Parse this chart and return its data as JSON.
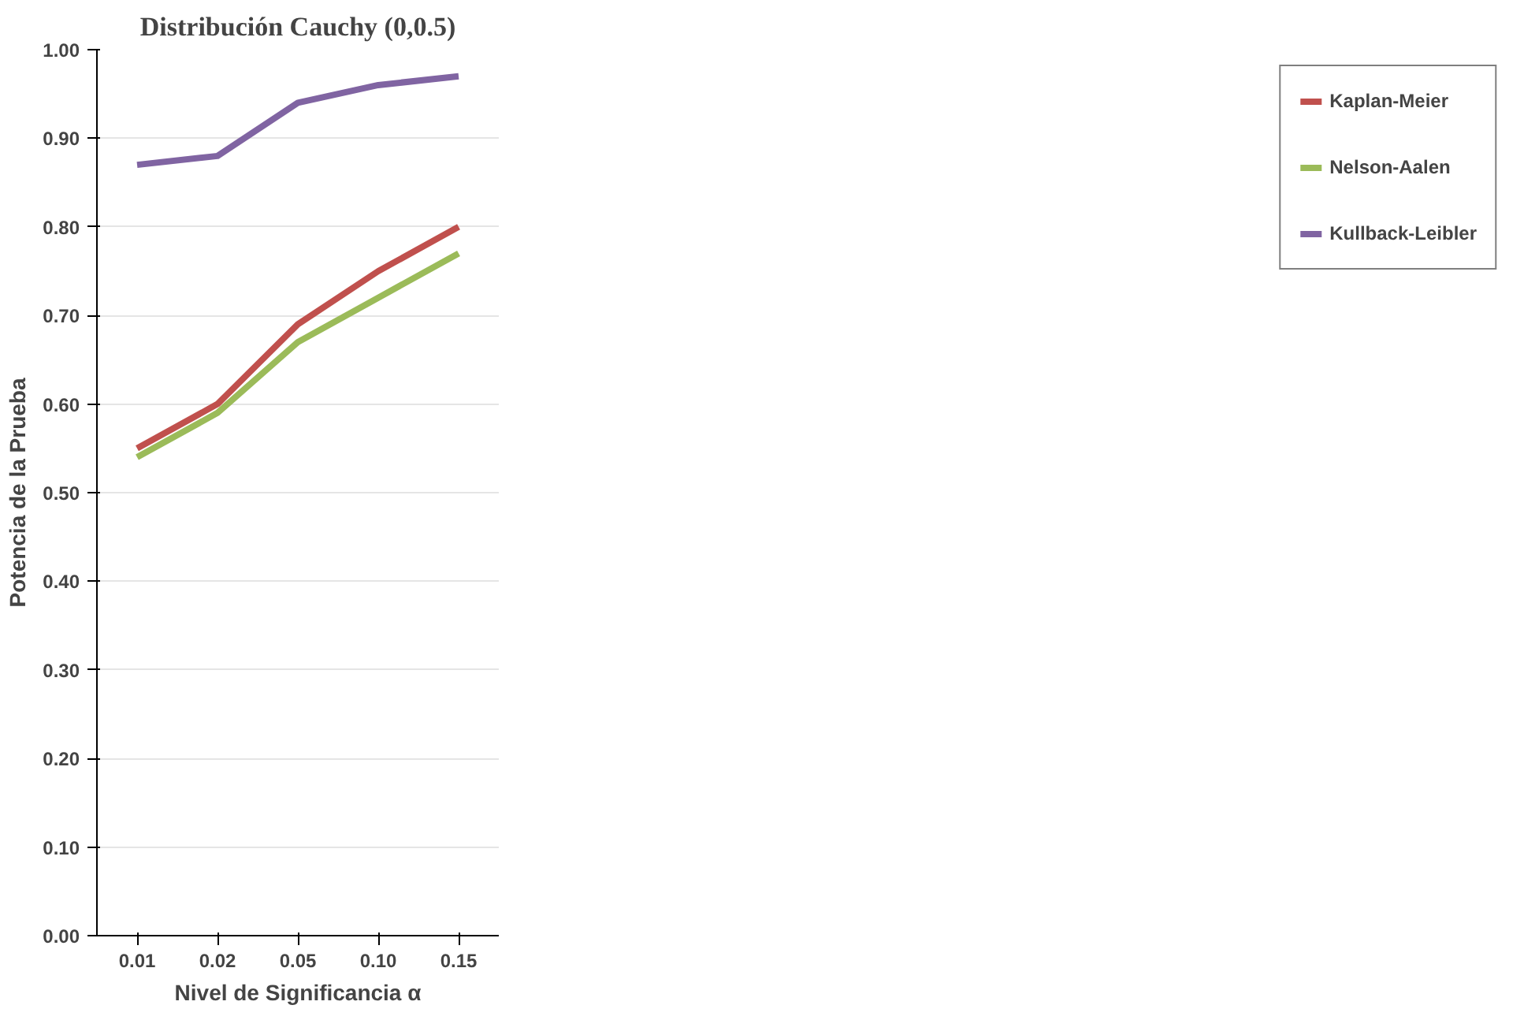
{
  "chart_data": {
    "type": "line",
    "title": "Distribución Cauchy (0,0.5)",
    "xlabel": "Nivel de Significancia α",
    "ylabel": "Potencia de la Prueba",
    "categories": [
      "0.01",
      "0.02",
      "0.05",
      "0.10",
      "0.15"
    ],
    "series": [
      {
        "name": "Kaplan-Meier",
        "color": "#c0504d",
        "values": [
          0.55,
          0.6,
          0.69,
          0.75,
          0.8
        ]
      },
      {
        "name": "Nelson-Aalen",
        "color": "#9bbb59",
        "values": [
          0.54,
          0.59,
          0.67,
          0.72,
          0.77
        ]
      },
      {
        "name": "Kullback-Leibler",
        "color": "#8064a2",
        "values": [
          0.87,
          0.88,
          0.94,
          0.96,
          0.97
        ]
      }
    ],
    "ylim": [
      0,
      1
    ],
    "yticks": [
      {
        "value": 0,
        "label": "0.00"
      },
      {
        "value": 0.1,
        "label": "0.10"
      },
      {
        "value": 0.2,
        "label": "0.20"
      },
      {
        "value": 0.3,
        "label": "0.30"
      },
      {
        "value": 0.4,
        "label": "0.40"
      },
      {
        "value": 0.5,
        "label": "0.50"
      },
      {
        "value": 0.6,
        "label": "0.60"
      },
      {
        "value": 0.7,
        "label": "0.70"
      },
      {
        "value": 0.8,
        "label": "0.80"
      },
      {
        "value": 0.9,
        "label": "0.90"
      },
      {
        "value": 1,
        "label": "1.00"
      }
    ],
    "grid": "y",
    "legend": "right",
    "marker": "none",
    "line_style": "solid"
  }
}
